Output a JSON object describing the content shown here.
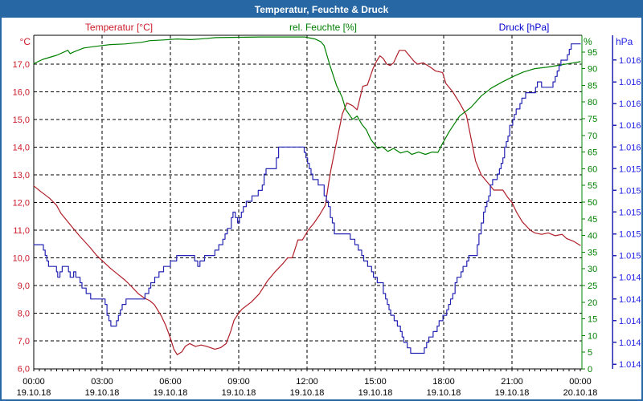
{
  "window": {
    "title": "Temperatur, Feuchte & Druck"
  },
  "headers": {
    "temperature": "Temperatur [°C]",
    "humidity": "rel. Feuchte [%]",
    "pressure": "Druck [hPa]"
  },
  "axis_units": {
    "temperature": "°C",
    "humidity": "%",
    "pressure": "hPa"
  },
  "colors": {
    "titlebar": "#2667A4",
    "temperature_line": "#B01E28",
    "temperature_text": "#CC1A28",
    "humidity_line": "#008000",
    "humidity_text": "#008000",
    "pressure_line": "#2424B4",
    "pressure_text": "#2222E6",
    "grid": "#000000",
    "background": "#FFFFFF"
  },
  "x_axis": {
    "tick_times": [
      "00:00",
      "03:00",
      "06:00",
      "09:00",
      "12:00",
      "15:00",
      "18:00",
      "21:00",
      "00:00"
    ],
    "tick_dates": [
      "19.10.18",
      "19.10.18",
      "19.10.18",
      "19.10.18",
      "19.10.18",
      "19.10.18",
      "19.10.18",
      "19.10.18",
      "20.10.18"
    ]
  },
  "chart_data": {
    "type": "line",
    "title": "Temperatur, Feuchte & Druck",
    "x_unit": "hours",
    "x_range": [
      0,
      24
    ],
    "grid": true,
    "axes": {
      "temperature": {
        "side": "left",
        "unit": "°C",
        "range": [
          6,
          18.05
        ],
        "tick_values": [
          17,
          16,
          15,
          14,
          13,
          12,
          11,
          10,
          9,
          8,
          7,
          6
        ],
        "tick_labels": [
          "17,0",
          "16,0",
          "15,0",
          "14,0",
          "13,0",
          "12,0",
          "11,0",
          "10,0",
          "9,0",
          "8,0",
          "7,0",
          "6,0"
        ]
      },
      "humidity": {
        "side": "right",
        "unit": "%",
        "range": [
          0,
          100
        ],
        "tick_values": [
          95,
          90,
          85,
          80,
          75,
          70,
          65,
          60,
          55,
          50,
          45,
          40,
          35,
          30,
          25,
          20,
          15,
          10,
          5,
          0
        ]
      },
      "pressure": {
        "side": "far-right",
        "unit": "hPa",
        "range": [
          1013.6,
          1016.63
        ],
        "tick_values": [
          1016.4,
          1016.2,
          1016.0,
          1015.8,
          1015.6,
          1015.4,
          1015.2,
          1015.0,
          1014.8,
          1014.6,
          1014.4,
          1014.2,
          1014.0,
          1013.8,
          1013.6
        ],
        "tick_labels": [
          "1.016",
          "1.016",
          "1.016",
          "1.016",
          "1.016",
          "1.015",
          "1.015",
          "1.015",
          "1.015",
          "1.015",
          "1.014",
          "1.014",
          "1.014",
          "1.014",
          "1.014"
        ]
      }
    },
    "series": [
      {
        "name": "Temperatur",
        "unit": "°C",
        "axis": "temperature",
        "style": "smooth",
        "points": [
          [
            0,
            12.6
          ],
          [
            0.3,
            12.4
          ],
          [
            0.7,
            12.15
          ],
          [
            1,
            11.9
          ],
          [
            1.2,
            11.6
          ],
          [
            1.7,
            11.1
          ],
          [
            2,
            10.8
          ],
          [
            2.5,
            10.35
          ],
          [
            2.75,
            10.1
          ],
          [
            3,
            9.9
          ],
          [
            3.4,
            9.6
          ],
          [
            3.7,
            9.4
          ],
          [
            4,
            9.2
          ],
          [
            4.25,
            9
          ],
          [
            4.6,
            8.7
          ],
          [
            4.85,
            8.55
          ],
          [
            5.1,
            8.45
          ],
          [
            5.3,
            8.3
          ],
          [
            5.6,
            7.9
          ],
          [
            5.8,
            7.55
          ],
          [
            6,
            7.1
          ],
          [
            6.15,
            6.7
          ],
          [
            6.3,
            6.5
          ],
          [
            6.5,
            6.6
          ],
          [
            6.65,
            6.8
          ],
          [
            6.85,
            6.9
          ],
          [
            7.1,
            6.8
          ],
          [
            7.35,
            6.85
          ],
          [
            7.6,
            6.8
          ],
          [
            7.95,
            6.7
          ],
          [
            8.2,
            6.75
          ],
          [
            8.45,
            6.9
          ],
          [
            8.65,
            7.35
          ],
          [
            8.8,
            7.75
          ],
          [
            9,
            8
          ],
          [
            9.15,
            8.15
          ],
          [
            9.55,
            8.4
          ],
          [
            9.9,
            8.7
          ],
          [
            10.25,
            9.15
          ],
          [
            10.6,
            9.5
          ],
          [
            10.95,
            9.8
          ],
          [
            11.15,
            10
          ],
          [
            11.35,
            10
          ],
          [
            11.6,
            10.65
          ],
          [
            11.8,
            10.65
          ],
          [
            12.05,
            11
          ],
          [
            12.3,
            11.25
          ],
          [
            12.55,
            11.55
          ],
          [
            12.8,
            11.9
          ],
          [
            12.95,
            12.7
          ],
          [
            13.05,
            13.2
          ],
          [
            13.3,
            14.2
          ],
          [
            13.55,
            15.2
          ],
          [
            13.75,
            15.6
          ],
          [
            14,
            15.5
          ],
          [
            14.2,
            15.35
          ],
          [
            14.45,
            16.2
          ],
          [
            14.65,
            16.25
          ],
          [
            14.9,
            16.85
          ],
          [
            15.05,
            17.1
          ],
          [
            15.2,
            17.3
          ],
          [
            15.35,
            17.2
          ],
          [
            15.5,
            17
          ],
          [
            15.65,
            16.95
          ],
          [
            15.8,
            17.05
          ],
          [
            16.05,
            17.5
          ],
          [
            16.3,
            17.5
          ],
          [
            16.7,
            17.1
          ],
          [
            16.85,
            17
          ],
          [
            17.1,
            17.05
          ],
          [
            17.4,
            16.9
          ],
          [
            17.65,
            16.75
          ],
          [
            17.95,
            16.7
          ],
          [
            18.1,
            16.3
          ],
          [
            18.4,
            16
          ],
          [
            18.7,
            15.6
          ],
          [
            19,
            15.15
          ],
          [
            19.4,
            13.5
          ],
          [
            19.65,
            13
          ],
          [
            20.05,
            12.6
          ],
          [
            20.2,
            12.45
          ],
          [
            20.6,
            12.45
          ],
          [
            20.8,
            12.2
          ],
          [
            21,
            12
          ],
          [
            21.2,
            11.65
          ],
          [
            21.45,
            11.3
          ],
          [
            21.8,
            11
          ],
          [
            22,
            10.9
          ],
          [
            22.3,
            10.85
          ],
          [
            22.6,
            10.9
          ],
          [
            22.9,
            10.8
          ],
          [
            23.2,
            10.85
          ],
          [
            23.4,
            10.7
          ],
          [
            23.7,
            10.6
          ],
          [
            24,
            10.45
          ]
        ]
      },
      {
        "name": "rel. Feuchte",
        "unit": "%",
        "axis": "humidity",
        "style": "smooth",
        "points": [
          [
            0,
            91.5
          ],
          [
            0.4,
            92.8
          ],
          [
            1,
            94
          ],
          [
            1.5,
            95.5
          ],
          [
            1.6,
            94.5
          ],
          [
            1.75,
            95
          ],
          [
            2.2,
            96.2
          ],
          [
            2.75,
            96.7
          ],
          [
            3.35,
            97.2
          ],
          [
            4,
            97.4
          ],
          [
            4.75,
            97.9
          ],
          [
            5.1,
            98.4
          ],
          [
            5.7,
            98.6
          ],
          [
            6.3,
            98.9
          ],
          [
            6.9,
            98.7
          ],
          [
            7.5,
            99
          ],
          [
            8,
            99.3
          ],
          [
            9,
            99.4
          ],
          [
            10,
            99.5
          ],
          [
            11,
            99.5
          ],
          [
            11.9,
            99.5
          ],
          [
            12.35,
            98.9
          ],
          [
            12.6,
            98.1
          ],
          [
            12.75,
            96.9
          ],
          [
            13,
            91.1
          ],
          [
            13.3,
            84.9
          ],
          [
            13.55,
            81.3
          ],
          [
            13.7,
            77.7
          ],
          [
            13.9,
            75.8
          ],
          [
            14,
            74.8
          ],
          [
            14.2,
            75.8
          ],
          [
            14.4,
            73.4
          ],
          [
            14.6,
            71.7
          ],
          [
            14.8,
            68.8
          ],
          [
            15.1,
            66.1
          ],
          [
            15.3,
            66.6
          ],
          [
            15.55,
            65.2
          ],
          [
            15.8,
            66.1
          ],
          [
            16.1,
            64.7
          ],
          [
            16.4,
            65.3
          ],
          [
            16.6,
            64.3
          ],
          [
            16.9,
            65
          ],
          [
            17.2,
            64.3
          ],
          [
            17.5,
            65
          ],
          [
            17.75,
            64.9
          ],
          [
            17.95,
            67.6
          ],
          [
            18.25,
            71.2
          ],
          [
            18.7,
            75.8
          ],
          [
            19.2,
            78.4
          ],
          [
            19.65,
            81.8
          ],
          [
            20.1,
            84.2
          ],
          [
            20.6,
            86.1
          ],
          [
            21.1,
            87.8
          ],
          [
            21.5,
            89
          ],
          [
            22,
            90
          ],
          [
            22.5,
            90.4
          ],
          [
            22.95,
            90.9
          ],
          [
            23.4,
            91.4
          ],
          [
            24,
            92.1
          ]
        ]
      },
      {
        "name": "Druck",
        "unit": "hPa",
        "axis": "pressure",
        "style": "steps",
        "quantum": 0.05,
        "points": [
          [
            0,
            1014.7
          ],
          [
            0.35,
            1014.7
          ],
          [
            0.5,
            1014.6
          ],
          [
            0.65,
            1014.5
          ],
          [
            0.95,
            1014.5
          ],
          [
            1.05,
            1014.4
          ],
          [
            1.25,
            1014.5
          ],
          [
            1.45,
            1014.5
          ],
          [
            1.6,
            1014.4
          ],
          [
            1.75,
            1014.44
          ],
          [
            1.95,
            1014.38
          ],
          [
            2.2,
            1014.28
          ],
          [
            2.5,
            1014.2
          ],
          [
            3.05,
            1014.2
          ],
          [
            3.3,
            1013.98
          ],
          [
            3.55,
            1013.96
          ],
          [
            3.8,
            1014.1
          ],
          [
            4.05,
            1014.2
          ],
          [
            4.8,
            1014.2
          ],
          [
            5.05,
            1014.3
          ],
          [
            5.4,
            1014.41
          ],
          [
            5.8,
            1014.5
          ],
          [
            6.1,
            1014.56
          ],
          [
            6.45,
            1014.6
          ],
          [
            7,
            1014.6
          ],
          [
            7.2,
            1014.52
          ],
          [
            7.5,
            1014.6
          ],
          [
            7.95,
            1014.63
          ],
          [
            8.3,
            1014.75
          ],
          [
            8.6,
            1014.87
          ],
          [
            8.75,
            1015
          ],
          [
            8.95,
            1014.92
          ],
          [
            9.2,
            1015.03
          ],
          [
            9.4,
            1015.1
          ],
          [
            9.95,
            1015.2
          ],
          [
            10.2,
            1015.4
          ],
          [
            10.55,
            1015.42
          ],
          [
            10.75,
            1015.6
          ],
          [
            11.8,
            1015.6
          ],
          [
            11.95,
            1015.5
          ],
          [
            12.25,
            1015.3
          ],
          [
            12.65,
            1015.25
          ],
          [
            12.85,
            1015.1
          ],
          [
            13.2,
            1014.8
          ],
          [
            13.8,
            1014.8
          ],
          [
            14.1,
            1014.7
          ],
          [
            14.4,
            1014.6
          ],
          [
            14.75,
            1014.48
          ],
          [
            15,
            1014.38
          ],
          [
            15.25,
            1014.33
          ],
          [
            15.45,
            1014.2
          ],
          [
            15.6,
            1014.08
          ],
          [
            15.9,
            1014
          ],
          [
            16.1,
            1013.92
          ],
          [
            16.25,
            1013.81
          ],
          [
            16.55,
            1013.7
          ],
          [
            17.05,
            1013.7
          ],
          [
            17.25,
            1013.78
          ],
          [
            17.45,
            1013.87
          ],
          [
            17.8,
            1013.98
          ],
          [
            18.05,
            1014.05
          ],
          [
            18.3,
            1014.2
          ],
          [
            18.5,
            1014.34
          ],
          [
            18.85,
            1014.48
          ],
          [
            19.1,
            1014.6
          ],
          [
            19.4,
            1014.6
          ],
          [
            19.55,
            1014.78
          ],
          [
            19.75,
            1015
          ],
          [
            19.9,
            1015.1
          ],
          [
            20.05,
            1015.24
          ],
          [
            20.25,
            1015.32
          ],
          [
            20.45,
            1015.4
          ],
          [
            20.6,
            1015.52
          ],
          [
            20.75,
            1015.65
          ],
          [
            20.9,
            1015.78
          ],
          [
            21.1,
            1015.9
          ],
          [
            21.35,
            1016
          ],
          [
            21.6,
            1016.1
          ],
          [
            21.95,
            1016.1
          ],
          [
            22.2,
            1016.22
          ],
          [
            22.4,
            1016.13
          ],
          [
            22.7,
            1016.13
          ],
          [
            22.9,
            1016.26
          ],
          [
            23.15,
            1016.38
          ],
          [
            23.35,
            1016.42
          ],
          [
            23.6,
            1016.53
          ],
          [
            24,
            1016.53
          ]
        ]
      }
    ]
  }
}
